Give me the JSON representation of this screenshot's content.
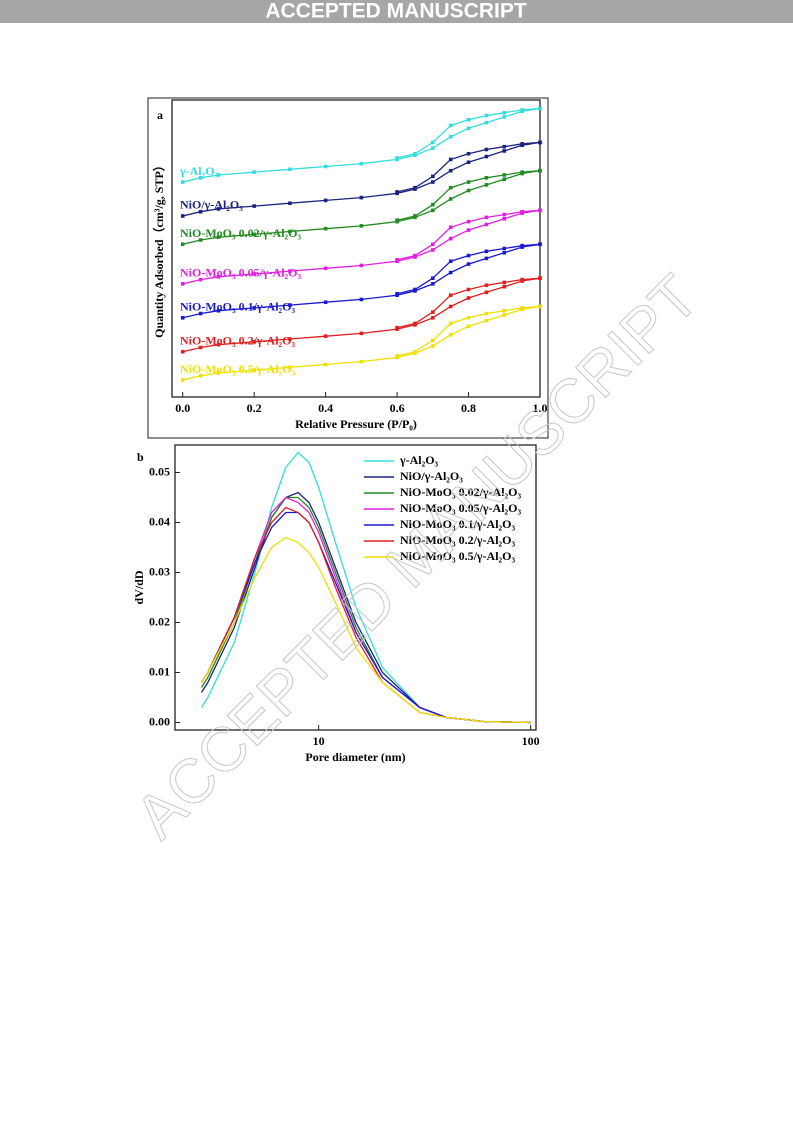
{
  "header": "ACCEPTED MANUSCRIPT",
  "watermark": "ACCEPTED MANUSCRIPT",
  "chart_data": [
    {
      "type": "line",
      "panel_label": "a",
      "markers": true,
      "xlabel": "Relative Pressure (P/P₀)",
      "ylabel": "Quantity Adsorbed（cm³/g, STP）",
      "x": [
        0.0,
        0.05,
        0.1,
        0.2,
        0.3,
        0.4,
        0.5,
        0.6,
        0.65,
        0.7,
        0.75,
        0.8,
        0.85,
        0.9,
        0.95,
        1.0
      ],
      "xlim": [
        -0.03,
        1.0
      ],
      "xticks": [
        {
          "value": 0,
          "label": "0.0"
        },
        0.2,
        0.4,
        0.6,
        0.8,
        {
          "value": 1,
          "label": "1.0"
        }
      ],
      "ylim": [
        0,
        105
      ],
      "series": [
        {
          "name": "γ-Al₂O₃",
          "color": "#33dddd",
          "values": [
            76,
            77.5,
            78.5,
            79.5,
            80.5,
            81.5,
            82.5,
            84,
            85.5,
            88,
            92,
            95,
            97,
            99,
            101,
            102
          ],
          "desorption": [
            null,
            null,
            null,
            null,
            null,
            null,
            null,
            84.5,
            86,
            90,
            96,
            98,
            99.5,
            100.5,
            101.5,
            102
          ]
        },
        {
          "name": "NiO/γ-Al₂O₃",
          "color": "#1a237e",
          "values": [
            64,
            65.5,
            66.5,
            67.5,
            68.5,
            69.5,
            70.5,
            72,
            73.5,
            76,
            80,
            83,
            85,
            87,
            89,
            90
          ],
          "desorption": [
            null,
            null,
            null,
            null,
            null,
            null,
            null,
            72.5,
            74,
            78,
            84,
            86,
            87.5,
            88.5,
            89.5,
            90
          ]
        },
        {
          "name": "NiO-MoO₃ 0.02/γ-Al₂O₃",
          "color": "#228b22",
          "values": [
            54,
            55.5,
            56.5,
            57.5,
            58.5,
            59.5,
            60.5,
            62,
            63.5,
            66,
            70,
            73,
            75,
            77,
            79,
            80
          ],
          "desorption": [
            null,
            null,
            null,
            null,
            null,
            null,
            null,
            62.5,
            64,
            68,
            74,
            76,
            77.5,
            78.5,
            79.5,
            80
          ]
        },
        {
          "name": "NiO-MoO₃ 0.05/γ-Al₂O₃",
          "color": "#e020e0",
          "values": [
            40,
            41.5,
            42.5,
            43.5,
            44.5,
            45.5,
            46.5,
            48,
            49.5,
            52,
            56,
            59,
            61,
            63,
            65,
            66
          ],
          "desorption": [
            null,
            null,
            null,
            null,
            null,
            null,
            null,
            48.5,
            50,
            54,
            60,
            62,
            63.5,
            64.5,
            65.5,
            66
          ]
        },
        {
          "name": "NiO-MoO₃ 0.1/γ-Al₂O₃",
          "color": "#1a1ad0",
          "values": [
            28,
            29.5,
            30.5,
            31.5,
            32.5,
            33.5,
            34.5,
            36,
            37.5,
            40,
            44,
            47,
            49,
            51,
            53,
            54
          ],
          "desorption": [
            null,
            null,
            null,
            null,
            null,
            null,
            null,
            36.5,
            38,
            42,
            48,
            50,
            51.5,
            52.5,
            53.5,
            54
          ]
        },
        {
          "name": "NiO-MoO₃ 0.2/γ-Al₂O₃",
          "color": "#e02020",
          "values": [
            16,
            17.5,
            18.5,
            19.5,
            20.5,
            21.5,
            22.5,
            24,
            25.5,
            28,
            32,
            35,
            37,
            39,
            41,
            42
          ],
          "desorption": [
            null,
            null,
            null,
            null,
            null,
            null,
            null,
            24.5,
            26,
            30,
            36,
            38,
            39.5,
            40.5,
            41.5,
            42
          ]
        },
        {
          "name": "NiO-MoO₃ 0.5/γ-Al₂O₃",
          "color": "#f0e000",
          "values": [
            6,
            7.5,
            8.5,
            9.5,
            10.5,
            11.5,
            12.5,
            14,
            15.5,
            18,
            22,
            25,
            27,
            29,
            31,
            32
          ],
          "desorption": [
            null,
            null,
            null,
            null,
            null,
            null,
            null,
            14.5,
            16,
            20,
            26,
            28,
            29.5,
            30.5,
            31.5,
            32
          ]
        }
      ]
    },
    {
      "type": "line",
      "panel_label": "b",
      "xscale": "log",
      "xlabel": "Pore diameter (nm)",
      "ylabel": "dV/dD",
      "x": [
        2.8,
        3,
        4,
        5,
        6,
        7,
        8,
        9,
        10,
        12,
        15,
        20,
        30,
        40,
        60,
        100
      ],
      "xlim": [
        2.1,
        106
      ],
      "xticks": [
        10,
        100
      ],
      "ylim": [
        -0.0015,
        0.0555
      ],
      "yticks": [
        {
          "value": 0,
          "label": "0.00"
        },
        0.01,
        0.02,
        0.03,
        0.04,
        0.05
      ],
      "series": [
        {
          "name": "γ-Al₂O₃",
          "color": "#33dddd",
          "values": [
            0.003,
            0.005,
            0.016,
            0.03,
            0.043,
            0.051,
            0.054,
            0.052,
            0.047,
            0.036,
            0.023,
            0.011,
            0.003,
            0.001,
            0.0002,
            0
          ]
        },
        {
          "name": "NiO/γ-Al₂O₃",
          "color": "#1a237e",
          "values": [
            0.006,
            0.008,
            0.019,
            0.031,
            0.041,
            0.045,
            0.046,
            0.044,
            0.04,
            0.031,
            0.02,
            0.01,
            0.003,
            0.001,
            0.0002,
            0
          ]
        },
        {
          "name": "NiO-MoO₃ 0.02/γ-Al₂O₃",
          "color": "#228b22",
          "values": [
            0.007,
            0.009,
            0.02,
            0.032,
            0.041,
            0.045,
            0.045,
            0.043,
            0.039,
            0.03,
            0.019,
            0.009,
            0.003,
            0.001,
            0.0002,
            0
          ]
        },
        {
          "name": "NiO-MoO₃ 0.05/γ-Al₂O₃",
          "color": "#e020e0",
          "values": [
            0.008,
            0.01,
            0.021,
            0.033,
            0.042,
            0.045,
            0.044,
            0.042,
            0.038,
            0.029,
            0.018,
            0.009,
            0.003,
            0.001,
            0.0002,
            0
          ]
        },
        {
          "name": "NiO-MoO₃ 0.1/γ-Al₂O₃",
          "color": "#1a1ad0",
          "values": [
            0.008,
            0.01,
            0.021,
            0.032,
            0.039,
            0.042,
            0.042,
            0.04,
            0.036,
            0.028,
            0.018,
            0.009,
            0.003,
            0.001,
            0.0002,
            0
          ]
        },
        {
          "name": "NiO-MoO₃ 0.2/γ-Al₂O₃",
          "color": "#e02020",
          "values": [
            0.008,
            0.01,
            0.021,
            0.033,
            0.04,
            0.043,
            0.042,
            0.04,
            0.036,
            0.027,
            0.017,
            0.008,
            0.002,
            0.001,
            0.0002,
            0
          ]
        },
        {
          "name": "NiO-MoO₃ 0.5/γ-Al₂O₃",
          "color": "#f0e000",
          "values": [
            0.008,
            0.01,
            0.02,
            0.029,
            0.035,
            0.037,
            0.036,
            0.034,
            0.031,
            0.024,
            0.015,
            0.008,
            0.002,
            0.001,
            0.0002,
            0
          ]
        }
      ]
    }
  ]
}
